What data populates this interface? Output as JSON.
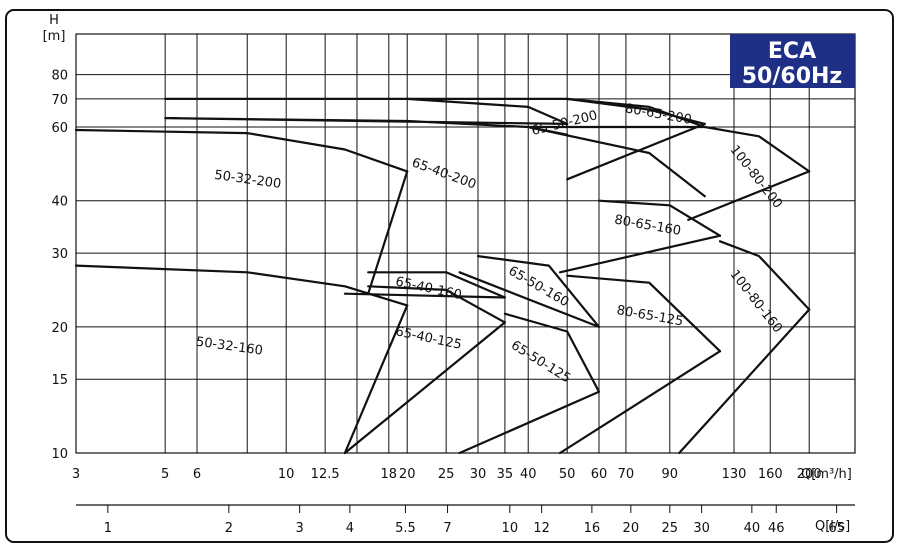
{
  "chart_data": {
    "type": "line",
    "title": "",
    "badge": {
      "line1": "ECA",
      "line2": "50/60Hz",
      "color": "#1f2f86"
    },
    "ylabel_top": "H",
    "ylabel_unit": "[m]",
    "xlabel": "Q[m³/h]",
    "x2label": "Q[l/s]",
    "xscale": "log",
    "yscale": "log",
    "xlim": [
      3,
      260
    ],
    "ylim": [
      10,
      100
    ],
    "grid": true,
    "yticks": [
      {
        "v": 10,
        "label": "10"
      },
      {
        "v": 15,
        "label": "15"
      },
      {
        "v": 20,
        "label": "20"
      },
      {
        "v": 30,
        "label": "30"
      },
      {
        "v": 40,
        "label": "40"
      },
      {
        "v": 60,
        "label": "60"
      },
      {
        "v": 70,
        "label": "70"
      },
      {
        "v": 80,
        "label": "80"
      }
    ],
    "xticks": [
      {
        "v": 3,
        "label": "3"
      },
      {
        "v": 5,
        "label": "5"
      },
      {
        "v": 6,
        "label": "6"
      },
      {
        "v": 10,
        "label": "10"
      },
      {
        "v": 12.5,
        "label": "12.5"
      },
      {
        "v": 18,
        "label": "18"
      },
      {
        "v": 20,
        "label": "20"
      },
      {
        "v": 25,
        "label": "25"
      },
      {
        "v": 30,
        "label": "30"
      },
      {
        "v": 35,
        "label": "35"
      },
      {
        "v": 40,
        "label": "40"
      },
      {
        "v": 50,
        "label": "50"
      },
      {
        "v": 60,
        "label": "60"
      },
      {
        "v": 70,
        "label": "70"
      },
      {
        "v": 90,
        "label": "90"
      },
      {
        "v": 130,
        "label": "130"
      },
      {
        "v": 160,
        "label": "160"
      },
      {
        "v": 200,
        "label": "200"
      }
    ],
    "extra_vgrid": [
      8,
      15
    ],
    "x2ticks": [
      {
        "q": 3.6,
        "label": "1"
      },
      {
        "q": 7.2,
        "label": "2"
      },
      {
        "q": 10.8,
        "label": "3"
      },
      {
        "q": 14.4,
        "label": "4"
      },
      {
        "q": 19.8,
        "label": "5.5"
      },
      {
        "q": 25.2,
        "label": "7"
      },
      {
        "q": 36,
        "label": "10"
      },
      {
        "q": 43.2,
        "label": "12"
      },
      {
        "q": 57.6,
        "label": "16"
      },
      {
        "q": 72,
        "label": "20"
      },
      {
        "q": 90,
        "label": "25"
      },
      {
        "q": 108,
        "label": "30"
      },
      {
        "q": 144,
        "label": "40"
      },
      {
        "q": 165.6,
        "label": "46"
      },
      {
        "q": 234,
        "label": "65"
      }
    ],
    "regions": [
      {
        "name": "50-32-200",
        "label": "50-32-200",
        "label_q": 8,
        "label_h": 44,
        "label_rot": 8,
        "upper": [
          [
            3,
            59
          ],
          [
            8,
            58
          ],
          [
            14,
            53
          ],
          [
            20,
            47
          ]
        ],
        "lower": [
          [
            16,
            24
          ]
        ]
      },
      {
        "name": "50-32-160",
        "label": "50-32-160",
        "label_q": 7.2,
        "label_h": 17.6,
        "label_rot": 8,
        "upper": [
          [
            3,
            28
          ],
          [
            8,
            27
          ],
          [
            14,
            25
          ],
          [
            20,
            22.5
          ]
        ],
        "lower": [
          [
            14,
            10
          ]
        ]
      },
      {
        "name": "65-40-200",
        "label": "65-40-200",
        "label_q": 24.5,
        "label_h": 45.5,
        "label_rot": 20,
        "upper": [
          [
            5,
            70
          ],
          [
            20,
            70
          ],
          [
            40,
            67
          ],
          [
            50,
            61
          ]
        ],
        "lower": [
          [
            5,
            63
          ],
          [
            20,
            62
          ],
          [
            40,
            60
          ],
          [
            50,
            57.5
          ]
        ]
      },
      {
        "name": "65-40-160",
        "label": "65-40-160",
        "label_q": 22.5,
        "label_h": 24.2,
        "label_rot": 12,
        "upper": [
          [
            16,
            27
          ],
          [
            25,
            27
          ],
          [
            35,
            23.5
          ]
        ],
        "lower": [
          [
            14,
            24
          ]
        ]
      },
      {
        "name": "65-40-125",
        "label": "65-40-125",
        "label_q": 22.5,
        "label_h": 18.4,
        "label_rot": 12,
        "upper": [
          [
            16,
            25
          ],
          [
            25,
            24.5
          ],
          [
            35,
            20.5
          ]
        ],
        "lower": [
          [
            14,
            10
          ]
        ]
      },
      {
        "name": "65-50-200",
        "label": "65-50-200",
        "label_q": 49.5,
        "label_h": 60,
        "label_rot": -14,
        "upper": [
          [
            20,
            70
          ],
          [
            50,
            70
          ],
          [
            80,
            67
          ],
          [
            110,
            60
          ]
        ],
        "lower": [
          [
            40,
            60
          ],
          [
            80,
            52
          ],
          [
            110,
            41
          ]
        ]
      },
      {
        "name": "65-50-160",
        "label": "65-50-160",
        "label_q": 42,
        "label_h": 24.5,
        "label_rot": 30,
        "upper": [
          [
            30,
            29.5
          ],
          [
            45,
            28
          ],
          [
            60,
            20
          ]
        ],
        "lower": [
          [
            27,
            27
          ]
        ]
      },
      {
        "name": "65-50-125",
        "label": "65-50-125",
        "label_q": 42.5,
        "label_h": 16.2,
        "label_rot": 32,
        "upper": [
          [
            35,
            21.5
          ],
          [
            50,
            19.5
          ],
          [
            60,
            14
          ]
        ],
        "lower": [
          [
            27,
            10
          ]
        ]
      },
      {
        "name": "80-65-200",
        "label": "80-65-200",
        "label_q": 84,
        "label_h": 63,
        "label_rot": 10,
        "upper": [
          [
            50,
            70
          ],
          [
            80,
            66
          ],
          [
            110,
            61
          ]
        ],
        "lower": [
          [
            50,
            45
          ]
        ]
      },
      {
        "name": "80-65-160",
        "label": "80-65-160",
        "label_q": 79,
        "label_h": 34.2,
        "label_rot": 10,
        "upper": [
          [
            60,
            40
          ],
          [
            90,
            39
          ],
          [
            120,
            33
          ]
        ],
        "lower": [
          [
            48,
            27
          ]
        ]
      },
      {
        "name": "80-65-125",
        "label": "80-65-125",
        "label_q": 80,
        "label_h": 20.8,
        "label_rot": 10,
        "upper": [
          [
            50,
            26.5
          ],
          [
            80,
            25.5
          ],
          [
            120,
            17.5
          ]
        ],
        "lower": [
          [
            48,
            10
          ]
        ]
      },
      {
        "name": "100-80-200",
        "label": "100-80-200",
        "label_q": 145,
        "label_h": 45,
        "label_rot": 52,
        "upper": [
          [
            110,
            60
          ],
          [
            150,
            57
          ],
          [
            200,
            47
          ]
        ],
        "lower": [
          [
            100,
            36
          ]
        ]
      },
      {
        "name": "100-80-160",
        "label": "100-80-160",
        "label_q": 145,
        "label_h": 22.7,
        "label_rot": 52,
        "upper": [
          [
            120,
            32
          ],
          [
            150,
            29.5
          ],
          [
            200,
            22
          ]
        ],
        "lower": [
          [
            95,
            10
          ]
        ]
      }
    ]
  }
}
